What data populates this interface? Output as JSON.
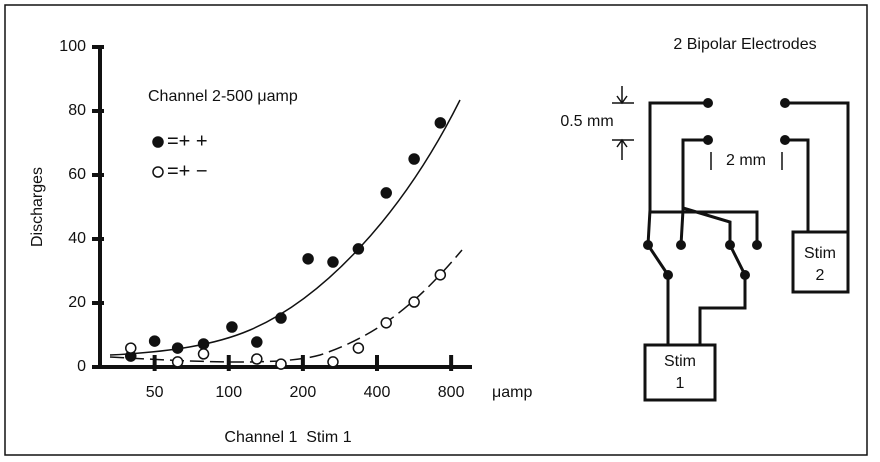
{
  "chart_data": {
    "type": "scatter",
    "annotation": "Channel 2-500 μamp",
    "y_label": "Discharges",
    "x_unit": "μamp",
    "x_label": "Channel 1  Stim 1",
    "x_scale": "log",
    "xlim": [
      30,
      1000
    ],
    "ylim": [
      0,
      100
    ],
    "xticks": [
      50,
      100,
      200,
      400,
      800
    ],
    "yticks": [
      0,
      20,
      40,
      60,
      80,
      100
    ],
    "series": [
      {
        "name": "=+ +",
        "color": "#111111",
        "filled": true,
        "x": [
          40,
          50,
          62,
          79,
          103,
          130,
          163,
          210,
          265,
          336,
          436,
          566,
          723
        ],
        "values": [
          3.4,
          8.1,
          5.9,
          7.2,
          12.5,
          7.8,
          15.3,
          33.8,
          32.8,
          36.9,
          54.4,
          65,
          76.3
        ]
      },
      {
        "name": "=+ −",
        "color": "#111111",
        "filled": false,
        "x": [
          40,
          62,
          79,
          130,
          163,
          265,
          336,
          436,
          566,
          723
        ],
        "values": [
          5.9,
          1.6,
          4.1,
          2.5,
          0.9,
          1.6,
          5.9,
          13.8,
          20.3,
          28.8
        ]
      }
    ]
  },
  "diagram": {
    "title": "2 Bipolar Electrodes",
    "spacing_vertical": "0.5 mm",
    "spacing_horizontal": "2 mm",
    "stim1": [
      "Stim",
      "1"
    ],
    "stim2": [
      "Stim",
      "2"
    ]
  }
}
